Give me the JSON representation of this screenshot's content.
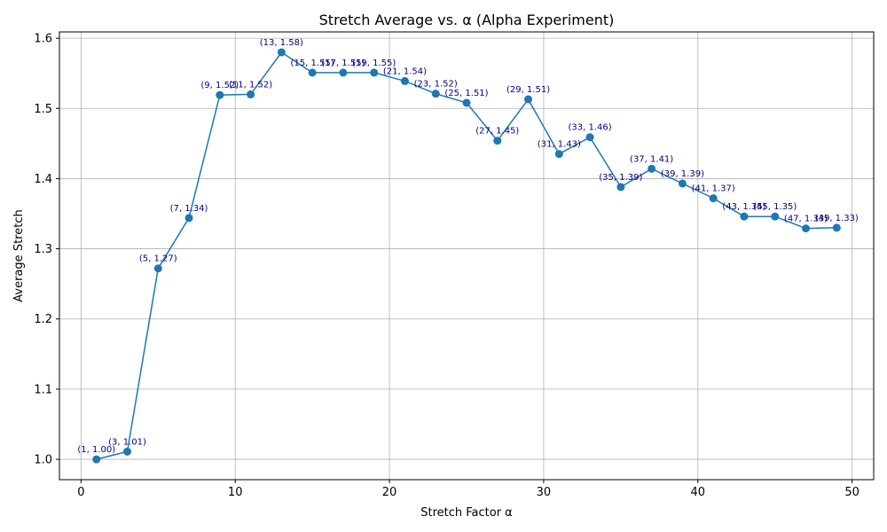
{
  "chart_data": {
    "type": "line",
    "title": "Stretch Average vs. α (Alpha Experiment)",
    "xlabel": "Stretch Factor α",
    "ylabel": "Average Stretch",
    "xlim": [
      -1.4,
      51.4
    ],
    "ylim": [
      0.971,
      1.609
    ],
    "xticks": [
      0,
      10,
      20,
      30,
      40,
      50
    ],
    "yticks": [
      1.0,
      1.1,
      1.2,
      1.3,
      1.4,
      1.5,
      1.6
    ],
    "xtick_labels": [
      "0",
      "10",
      "20",
      "30",
      "40",
      "50"
    ],
    "ytick_labels": [
      "1.0",
      "1.1",
      "1.2",
      "1.3",
      "1.4",
      "1.5",
      "1.6"
    ],
    "grid": true,
    "line_color": "#1f77b4",
    "label_color": "#000080",
    "series": [
      {
        "x": [
          1,
          3,
          5,
          7,
          9,
          11,
          13,
          15,
          17,
          19,
          21,
          23,
          25,
          27,
          29,
          31,
          33,
          35,
          37,
          39,
          41,
          43,
          45,
          47,
          49
        ],
        "y": [
          1.0,
          1.011,
          1.272,
          1.344,
          1.519,
          1.52,
          1.58,
          1.551,
          1.551,
          1.551,
          1.539,
          1.521,
          1.508,
          1.454,
          1.513,
          1.435,
          1.459,
          1.388,
          1.414,
          1.393,
          1.372,
          1.346,
          1.346,
          1.329,
          1.33
        ],
        "labels": [
          "(1, 1.00)",
          "(3, 1.01)",
          "(5, 1.27)",
          "(7, 1.34)",
          "(9, 1.52)",
          "(11, 1.52)",
          "(13, 1.58)",
          "(15, 1.55)",
          "(17, 1.55)",
          "(19, 1.55)",
          "(21, 1.54)",
          "(23, 1.52)",
          "(25, 1.51)",
          "(27, 1.45)",
          "(29, 1.51)",
          "(31, 1.43)",
          "(33, 1.46)",
          "(35, 1.39)",
          "(37, 1.41)",
          "(39, 1.39)",
          "(41, 1.37)",
          "(43, 1.35)",
          "(45, 1.35)",
          "(47, 1.33)",
          "(49, 1.33)"
        ]
      }
    ]
  }
}
